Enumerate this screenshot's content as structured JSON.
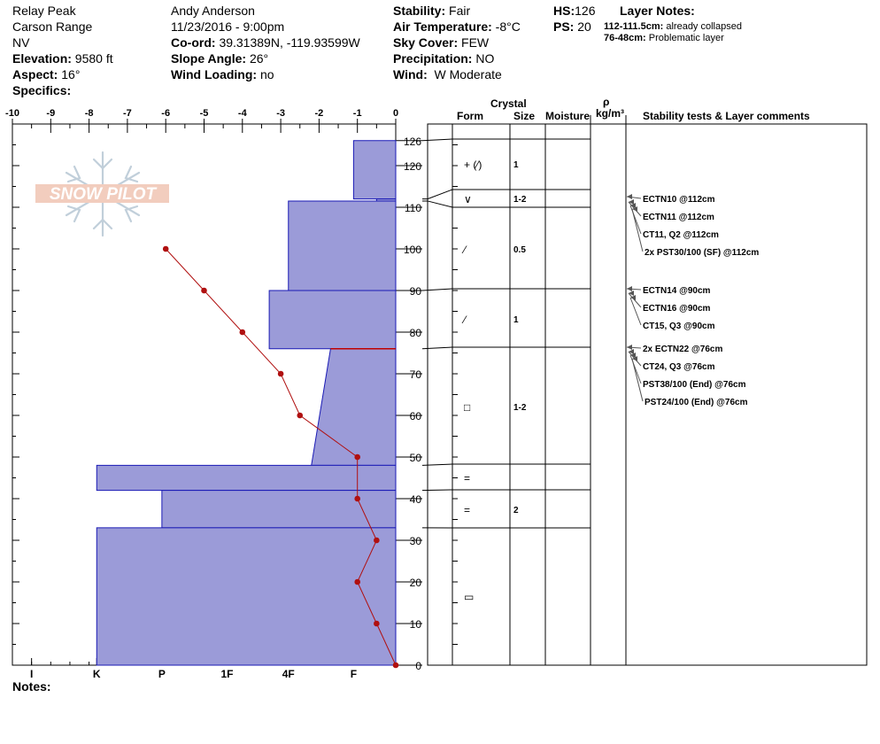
{
  "header": {
    "location": "Relay Peak",
    "range": "Carson Range",
    "state": "NV",
    "elevation_label": "Elevation:",
    "elevation": "9580 ft",
    "aspect_label": "Aspect:",
    "aspect": "16°",
    "specifics_label": "Specifics:",
    "observer": "Andy Anderson",
    "datetime": "11/23/2016 - 9:00pm",
    "coord_label": "Co-ord:",
    "coord": "39.31389N, -119.93599W",
    "slope_label": "Slope Angle:",
    "slope": "26°",
    "wind_loading_label": "Wind Loading:",
    "wind_loading": "no",
    "stability_label": "Stability:",
    "stability": "Fair",
    "air_temp_label": "Air Temperature:",
    "air_temp": "-8°C",
    "sky_label": "Sky Cover:",
    "sky": "FEW",
    "precip_label": "Precipitation:",
    "precip": "NO",
    "wind_label": "Wind:",
    "wind": "W Moderate",
    "hs_label": "HS:",
    "hs": "126",
    "ps_label": "PS:",
    "ps": "20",
    "layer_notes_label": "Layer Notes:",
    "layer_note1_range": "112-111.5cm:",
    "layer_note1_text": "already collapsed",
    "layer_note2_range": "76-48cm:",
    "layer_note2_text": "Problematic layer",
    "notes_label": "Notes:"
  },
  "logo": {
    "text": "SNOW PILOT"
  },
  "table_headers": {
    "crystal": "Crystal",
    "form": "Form",
    "size": "Size",
    "moisture": "Moisture",
    "rho": "ρ",
    "density": "kg/m³",
    "comments": "Stability tests & Layer comments"
  },
  "chart_data": {
    "type": "snow_profile",
    "depth_axis": {
      "min": 0,
      "max": 126,
      "ticks": [
        0,
        10,
        20,
        30,
        40,
        50,
        60,
        70,
        80,
        90,
        100,
        110,
        120,
        126
      ]
    },
    "temp_axis": {
      "min": -10,
      "max": 0,
      "ticks": [
        "-10",
        "-9",
        "-8",
        "-7",
        "-6",
        "-5",
        "-4",
        "-3",
        "-2",
        "-1",
        "0"
      ]
    },
    "hardness_labels": [
      "I",
      "K",
      "P",
      "1F",
      "4F",
      "F"
    ],
    "hardness_layers": [
      {
        "top": 126,
        "bottom": 112,
        "hardness": 1.1
      },
      {
        "top": 112,
        "bottom": 111.5,
        "hardness": 0.5
      },
      {
        "top": 111.5,
        "bottom": 90,
        "hardness": 2.8
      },
      {
        "top": 90,
        "bottom": 76,
        "hardness": 3.3
      },
      {
        "top": 76,
        "bottom": 48,
        "hardness_top": 1.7,
        "hardness_bottom": 2.2
      },
      {
        "top": 48,
        "bottom": 42,
        "hardness": 7.8
      },
      {
        "top": 42,
        "bottom": 33,
        "hardness": 6.1
      },
      {
        "top": 33,
        "bottom": 0,
        "hardness": 7.8
      }
    ],
    "temperature_profile": [
      {
        "depth": 100,
        "temp": -6
      },
      {
        "depth": 90,
        "temp": -5
      },
      {
        "depth": 80,
        "temp": -4
      },
      {
        "depth": 70,
        "temp": -3
      },
      {
        "depth": 60,
        "temp": -2.5
      },
      {
        "depth": 50,
        "temp": -1
      },
      {
        "depth": 40,
        "temp": -1
      },
      {
        "depth": 30,
        "temp": -0.5
      },
      {
        "depth": 20,
        "temp": -1
      },
      {
        "depth": 10,
        "temp": -0.5
      },
      {
        "depth": 0,
        "temp": 0
      }
    ],
    "layer_boundaries": [
      126,
      112,
      111.5,
      90,
      76,
      48,
      42,
      33
    ],
    "crystal_rows": [
      {
        "mid": 119,
        "form": "+ (⁄)",
        "size": "1"
      },
      {
        "mid": 112,
        "form": "∨",
        "size": "1-2"
      },
      {
        "mid": 100,
        "form": "⁄",
        "size": "0.5"
      },
      {
        "mid": 83,
        "form": "⁄",
        "size": "1"
      },
      {
        "mid": 62,
        "form": "□",
        "size": "1-2"
      },
      {
        "mid": 45,
        "form": "=",
        "size": ""
      },
      {
        "mid": 37.5,
        "form": "=",
        "size": "2"
      },
      {
        "mid": 16.5,
        "form": "▭",
        "size": ""
      }
    ],
    "test_groups": [
      {
        "depth": 112,
        "tests": [
          "ECTN10 @112cm",
          "ECTN11 @112cm",
          "CT11, Q2 @112cm",
          "2x PST30/100 (SF) @112cm"
        ]
      },
      {
        "depth": 90,
        "tests": [
          "ECTN14 @90cm",
          "ECTN16 @90cm",
          "CT15, Q3 @90cm"
        ]
      },
      {
        "depth": 76,
        "tests": [
          "2x ECTN22 @76cm",
          "CT24, Q3 @76cm",
          "PST38/100 (End) @76cm",
          "PST24/100 (End) @76cm"
        ]
      }
    ]
  }
}
